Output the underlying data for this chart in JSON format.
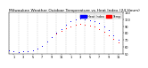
{
  "title": "Milwaukee Weather Outdoor Temperature vs Heat Index (24 Hours)",
  "title_fontsize": 3.2,
  "background_color": "#ffffff",
  "grid_color": "#aaaaaa",
  "xlim": [
    0,
    24
  ],
  "ylim": [
    50,
    110
  ],
  "tick_fontsize": 2.5,
  "hours": [
    0,
    1,
    2,
    3,
    4,
    5,
    6,
    7,
    8,
    9,
    10,
    11,
    12,
    13,
    14,
    15,
    16,
    17,
    18,
    19,
    20,
    21,
    22,
    23
  ],
  "temp": [
    55,
    54,
    53,
    54,
    54,
    55,
    57,
    62,
    68,
    74,
    79,
    83,
    87,
    90,
    92,
    93,
    92,
    91,
    89,
    86,
    82,
    77,
    72,
    67
  ],
  "heat_index": [
    55,
    54,
    53,
    54,
    54,
    55,
    57,
    62,
    68,
    74,
    80,
    86,
    92,
    97,
    100,
    101,
    100,
    99,
    97,
    94,
    90,
    84,
    77,
    70
  ],
  "temp_color": "#ff0000",
  "heat_color": "#0000ff",
  "legend_temp": "Temp",
  "legend_heat": "Heat Index",
  "yticks": [
    50,
    60,
    70,
    80,
    90,
    100,
    110
  ],
  "vgrid_positions": [
    0,
    2,
    4,
    6,
    8,
    10,
    12,
    14,
    16,
    18,
    20,
    22,
    24
  ]
}
